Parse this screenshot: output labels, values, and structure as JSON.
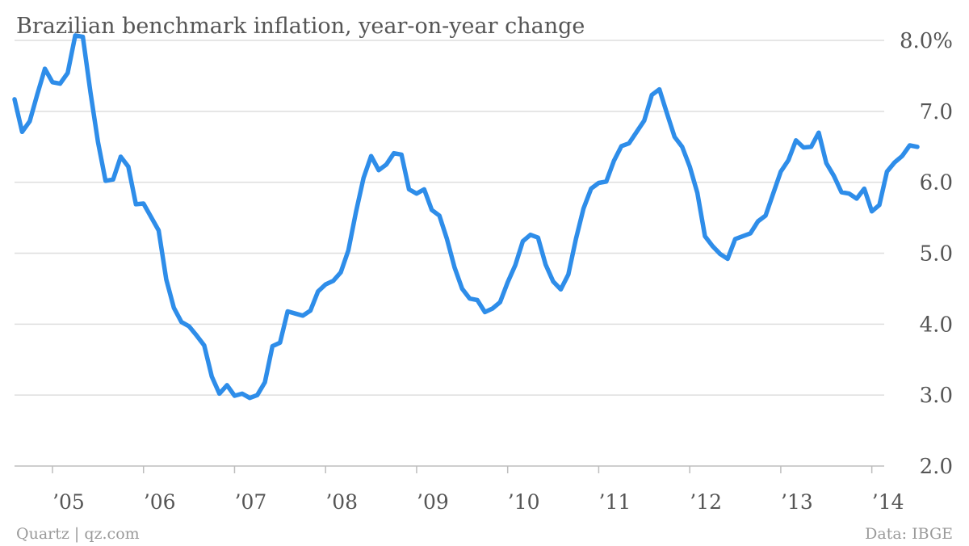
{
  "chart_data": {
    "type": "line",
    "title": "Brazilian benchmark inflation, year-on-year change",
    "source_left": "Quartz | qz.com",
    "source_right": "Data: IBGE",
    "ylim": [
      2.0,
      8.0
    ],
    "y_ticks": [
      2.0,
      3.0,
      4.0,
      5.0,
      6.0,
      7.0,
      8.0
    ],
    "y_tick_labels": [
      "2.0",
      "3.0",
      "4.0",
      "5.0",
      "6.0",
      "7.0",
      "8.0%"
    ],
    "x_ticks": [
      2005,
      2006,
      2007,
      2008,
      2009,
      2010,
      2011,
      2012,
      2013,
      2014
    ],
    "x_tick_labels": [
      "’05",
      "’06",
      "’07",
      "’08",
      "’09",
      "’10",
      "’11",
      "’12",
      "’13",
      "’14"
    ],
    "xlim": [
      "2004-08",
      "2014-12"
    ],
    "grid": true,
    "colors": {
      "line": "#2e8de9"
    },
    "series": [
      {
        "points": [
          [
            "2004-08",
            7.17
          ],
          [
            "2004-09",
            6.71
          ],
          [
            "2004-10",
            6.86
          ],
          [
            "2004-11",
            7.24
          ],
          [
            "2004-12",
            7.6
          ],
          [
            "2005-01",
            7.41
          ],
          [
            "2005-02",
            7.39
          ],
          [
            "2005-03",
            7.54
          ],
          [
            "2005-04",
            8.07
          ],
          [
            "2005-05",
            8.05
          ],
          [
            "2005-06",
            7.27
          ],
          [
            "2005-07",
            6.57
          ],
          [
            "2005-08",
            6.02
          ],
          [
            "2005-09",
            6.04
          ],
          [
            "2005-10",
            6.36
          ],
          [
            "2005-11",
            6.22
          ],
          [
            "2005-12",
            5.69
          ],
          [
            "2006-01",
            5.7
          ],
          [
            "2006-02",
            5.51
          ],
          [
            "2006-03",
            5.32
          ],
          [
            "2006-04",
            4.63
          ],
          [
            "2006-05",
            4.23
          ],
          [
            "2006-06",
            4.03
          ],
          [
            "2006-07",
            3.97
          ],
          [
            "2006-08",
            3.84
          ],
          [
            "2006-09",
            3.7
          ],
          [
            "2006-10",
            3.26
          ],
          [
            "2006-11",
            3.02
          ],
          [
            "2006-12",
            3.14
          ],
          [
            "2007-01",
            2.99
          ],
          [
            "2007-02",
            3.02
          ],
          [
            "2007-03",
            2.96
          ],
          [
            "2007-04",
            3.0
          ],
          [
            "2007-05",
            3.18
          ],
          [
            "2007-06",
            3.69
          ],
          [
            "2007-07",
            3.74
          ],
          [
            "2007-08",
            4.18
          ],
          [
            "2007-09",
            4.15
          ],
          [
            "2007-10",
            4.12
          ],
          [
            "2007-11",
            4.19
          ],
          [
            "2007-12",
            4.46
          ],
          [
            "2008-01",
            4.56
          ],
          [
            "2008-02",
            4.61
          ],
          [
            "2008-03",
            4.73
          ],
          [
            "2008-04",
            5.04
          ],
          [
            "2008-05",
            5.58
          ],
          [
            "2008-06",
            6.06
          ],
          [
            "2008-07",
            6.37
          ],
          [
            "2008-08",
            6.17
          ],
          [
            "2008-09",
            6.25
          ],
          [
            "2008-10",
            6.41
          ],
          [
            "2008-11",
            6.39
          ],
          [
            "2008-12",
            5.9
          ],
          [
            "2009-01",
            5.84
          ],
          [
            "2009-02",
            5.9
          ],
          [
            "2009-03",
            5.61
          ],
          [
            "2009-04",
            5.53
          ],
          [
            "2009-05",
            5.2
          ],
          [
            "2009-06",
            4.8
          ],
          [
            "2009-07",
            4.5
          ],
          [
            "2009-08",
            4.36
          ],
          [
            "2009-09",
            4.34
          ],
          [
            "2009-10",
            4.17
          ],
          [
            "2009-11",
            4.22
          ],
          [
            "2009-12",
            4.31
          ],
          [
            "2010-01",
            4.59
          ],
          [
            "2010-02",
            4.83
          ],
          [
            "2010-03",
            5.17
          ],
          [
            "2010-04",
            5.26
          ],
          [
            "2010-05",
            5.22
          ],
          [
            "2010-06",
            4.84
          ],
          [
            "2010-07",
            4.6
          ],
          [
            "2010-08",
            4.49
          ],
          [
            "2010-09",
            4.7
          ],
          [
            "2010-10",
            5.2
          ],
          [
            "2010-11",
            5.63
          ],
          [
            "2010-12",
            5.91
          ],
          [
            "2011-01",
            5.99
          ],
          [
            "2011-02",
            6.01
          ],
          [
            "2011-03",
            6.3
          ],
          [
            "2011-04",
            6.51
          ],
          [
            "2011-05",
            6.55
          ],
          [
            "2011-06",
            6.71
          ],
          [
            "2011-07",
            6.87
          ],
          [
            "2011-08",
            7.23
          ],
          [
            "2011-09",
            7.31
          ],
          [
            "2011-10",
            6.97
          ],
          [
            "2011-11",
            6.64
          ],
          [
            "2011-12",
            6.5
          ],
          [
            "2012-01",
            6.22
          ],
          [
            "2012-02",
            5.85
          ],
          [
            "2012-03",
            5.24
          ],
          [
            "2012-04",
            5.1
          ],
          [
            "2012-05",
            4.99
          ],
          [
            "2012-06",
            4.92
          ],
          [
            "2012-07",
            5.2
          ],
          [
            "2012-08",
            5.24
          ],
          [
            "2012-09",
            5.28
          ],
          [
            "2012-10",
            5.45
          ],
          [
            "2012-11",
            5.53
          ],
          [
            "2012-12",
            5.84
          ],
          [
            "2013-01",
            6.15
          ],
          [
            "2013-02",
            6.31
          ],
          [
            "2013-03",
            6.59
          ],
          [
            "2013-04",
            6.49
          ],
          [
            "2013-05",
            6.5
          ],
          [
            "2013-06",
            6.7
          ],
          [
            "2013-07",
            6.27
          ],
          [
            "2013-08",
            6.09
          ],
          [
            "2013-09",
            5.86
          ],
          [
            "2013-10",
            5.84
          ],
          [
            "2013-11",
            5.77
          ],
          [
            "2013-12",
            5.91
          ],
          [
            "2014-01",
            5.59
          ],
          [
            "2014-02",
            5.68
          ],
          [
            "2014-03",
            6.15
          ],
          [
            "2014-04",
            6.28
          ],
          [
            "2014-05",
            6.37
          ],
          [
            "2014-06",
            6.52
          ],
          [
            "2014-07",
            6.5
          ]
        ]
      }
    ]
  }
}
